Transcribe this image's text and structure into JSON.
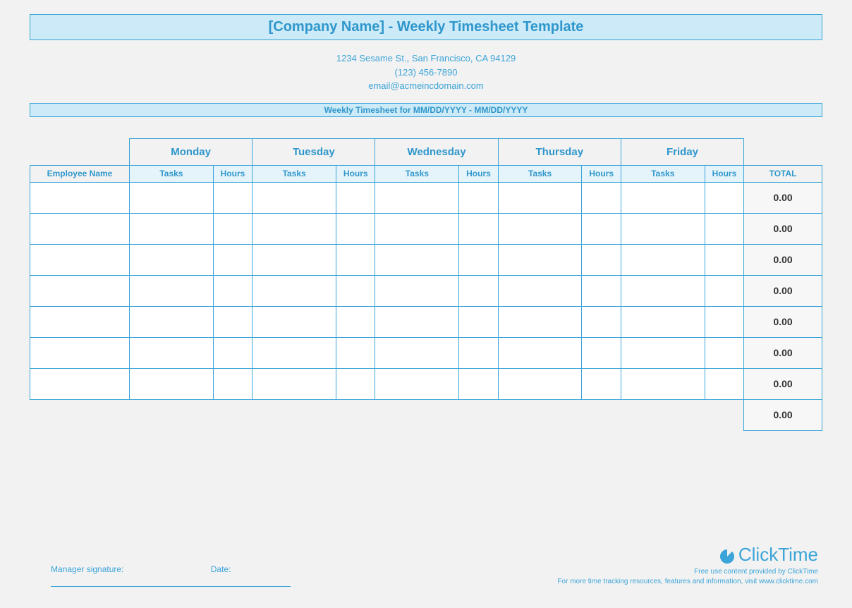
{
  "header": {
    "title": "[Company Name] - Weekly Timesheet Template",
    "address": "1234 Sesame St.,  San Francisco, CA 94129",
    "phone": "(123) 456-7890",
    "email": "email@acmeincdomain.com",
    "subtitle": "Weekly Timesheet for MM/DD/YYYY - MM/DD/YYYY"
  },
  "table": {
    "employee_header": "Employee Name",
    "days": [
      "Monday",
      "Tuesday",
      "Wednesday",
      "Thursday",
      "Friday"
    ],
    "tasks_label": "Tasks",
    "hours_label": "Hours",
    "total_label": "TOTAL",
    "row_totals": [
      "0.00",
      "0.00",
      "0.00",
      "0.00",
      "0.00",
      "0.00",
      "0.00"
    ],
    "grand_total": "0.00",
    "num_rows": 7,
    "colors": {
      "border": "#3ba4d8",
      "header_bg": "#cceaf7",
      "subhead_bg": "#e5f4fb",
      "total_bg": "#f7f7f7",
      "page_bg": "#f2f2f2"
    }
  },
  "signature": {
    "manager_label": "Manager signature:",
    "date_label": "Date:"
  },
  "footer": {
    "brand": "ClickTime",
    "line1": "Free use content provided by ClickTime",
    "line2": "For more time tracking resources, features and information, visit www.clicktime.com"
  }
}
